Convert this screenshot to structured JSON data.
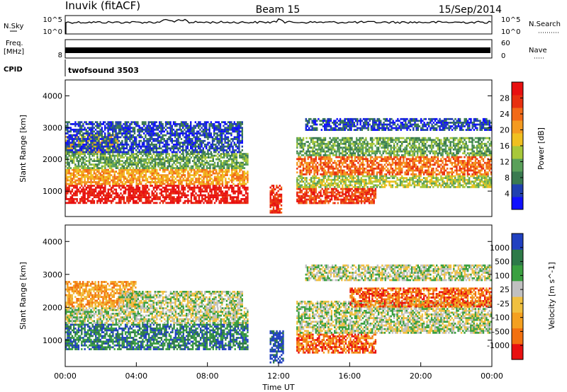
{
  "header": {
    "station": "Inuvik (fitACF)",
    "beam": "Beam 15",
    "date": "15/Sep/2014"
  },
  "top_panels": {
    "nsky_label": "N.Sky",
    "nsky_ticks": [
      "10^5",
      "10^0"
    ],
    "nsearch_label": "N.Search",
    "nsearch_ticks": [
      "10^5",
      "10^0"
    ],
    "freq_label_line1": "Freq.",
    "freq_label_line2": "[MHz]",
    "freq_ticks": [
      "8"
    ],
    "nave_label": "Nave",
    "nave_ticks": [
      "60",
      "0"
    ],
    "cpid_label": "CPID",
    "cpid_name": "twofsound 3503"
  },
  "chart_data": [
    {
      "type": "heatmap",
      "quantity": "Power",
      "ylabel": "Slant Range [km]",
      "yticks": [
        "1000",
        "2000",
        "3000",
        "4000"
      ],
      "ylim": [
        200,
        4500
      ],
      "xlim": [
        0,
        24
      ],
      "colorbar_label": "Power [dB]",
      "colorbar_ticks": [
        "4",
        "8",
        "12",
        "16",
        "20",
        "24",
        "28"
      ],
      "colors": [
        "#1010ff",
        "#2040b0",
        "#3a7a50",
        "#5aa05a",
        "#a8c83a",
        "#f0c020",
        "#f49a20",
        "#f26a18",
        "#e83010",
        "#e81010"
      ],
      "bands": [
        {
          "start": 0,
          "end": 10.3,
          "range": [
            600,
            1200
          ],
          "level": 9
        },
        {
          "start": 0,
          "end": 10.3,
          "range": [
            1200,
            1700
          ],
          "level": 6
        },
        {
          "start": 0,
          "end": 10.3,
          "range": [
            1700,
            2200
          ],
          "level": 3
        },
        {
          "start": 0,
          "end": 3,
          "range": [
            2200,
            2800
          ],
          "level": 5
        },
        {
          "start": 0,
          "end": 10,
          "range": [
            2200,
            3200
          ],
          "level": 1
        },
        {
          "start": 13,
          "end": 17.5,
          "range": [
            600,
            1100
          ],
          "level": 8
        },
        {
          "start": 13,
          "end": 24,
          "range": [
            1100,
            1500
          ],
          "level": 4
        },
        {
          "start": 13,
          "end": 24,
          "range": [
            1500,
            2100
          ],
          "level": 7
        },
        {
          "start": 13,
          "end": 24,
          "range": [
            2100,
            2700
          ],
          "level": 3
        },
        {
          "start": 13.5,
          "end": 24,
          "range": [
            2900,
            3300
          ],
          "level": 1
        },
        {
          "start": 11.5,
          "end": 12.2,
          "range": [
            300,
            1200
          ],
          "level": 8
        }
      ]
    },
    {
      "type": "heatmap",
      "quantity": "Velocity",
      "ylabel": "Slant Range [km]",
      "yticks": [
        "1000",
        "2000",
        "3000",
        "4000"
      ],
      "ylim": [
        200,
        4500
      ],
      "xlabel": "Time UT",
      "xticks": [
        "00:00",
        "04:00",
        "08:00",
        "12:00",
        "16:00",
        "20:00",
        "00:00"
      ],
      "xlim": [
        0,
        24
      ],
      "colorbar_label": "Velocity [m s^-1]",
      "colorbar_ticks": [
        "1000",
        "500",
        "100",
        "25",
        "-25",
        "-100",
        "-500",
        "-1000"
      ],
      "colors": [
        "#2040c0",
        "#2e7a48",
        "#3aa040",
        "#c0c0c0",
        "#f0c040",
        "#f4a020",
        "#f27010",
        "#e81010"
      ],
      "bands": [
        {
          "start": 0,
          "end": 10.3,
          "range": [
            700,
            1500
          ],
          "level": 1
        },
        {
          "start": 0,
          "end": 10.3,
          "range": [
            1500,
            2000
          ],
          "level": 3
        },
        {
          "start": 0,
          "end": 4,
          "range": [
            2000,
            2800
          ],
          "level": 5
        },
        {
          "start": 3,
          "end": 10,
          "range": [
            2000,
            2500
          ],
          "level": 3
        },
        {
          "start": 11.5,
          "end": 12.3,
          "range": [
            300,
            1300
          ],
          "level": 0
        },
        {
          "start": 13,
          "end": 17.5,
          "range": [
            600,
            1200
          ],
          "level": 6
        },
        {
          "start": 13,
          "end": 24,
          "range": [
            1200,
            2200
          ],
          "level": 3
        },
        {
          "start": 16,
          "end": 24,
          "range": [
            2000,
            2600
          ],
          "level": 6
        },
        {
          "start": 13.5,
          "end": 24,
          "range": [
            2800,
            3300
          ],
          "level": 3
        }
      ]
    }
  ]
}
